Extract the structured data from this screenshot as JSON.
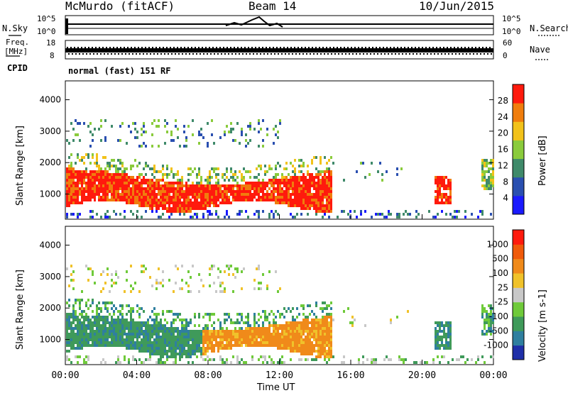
{
  "header": {
    "station": "McMurdo (fitACF)",
    "beam": "Beam 14",
    "date": "10/Jun/2015"
  },
  "top_panels": {
    "nsky_label": "N.Sky",
    "nsearch_label": "N.Search",
    "noise_ticks_left": [
      "10^5",
      "10^0"
    ],
    "noise_ticks_right": [
      "10^5",
      "10^0"
    ],
    "freq_label_1": "Freq.",
    "freq_label_2": "[MHz]",
    "freq_ticks": [
      "18",
      "8"
    ],
    "nave_label": "Nave",
    "nave_ticks": [
      "60",
      "0"
    ],
    "cpid_label": "CPID",
    "cpid_value": "normal (fast) 151 RF"
  },
  "chart_data": [
    {
      "type": "heatmap",
      "ylabel": "Slant Range [km]",
      "xlabel": "",
      "ylim": [
        200,
        4600
      ],
      "y_ticks": [
        "1000",
        "2000",
        "3000",
        "4000"
      ],
      "colorbar_label": "Power [dB]",
      "colorbar_ticks": [
        "28",
        "24",
        "20",
        "16",
        "12",
        "8",
        "4"
      ],
      "colors": [
        "#1a1aff",
        "#2a4fb0",
        "#3f8a6a",
        "#8acb3c",
        "#f2c21a",
        "#f07d0d",
        "#ff1a0d"
      ],
      "grid": false
    },
    {
      "type": "heatmap",
      "ylabel": "Slant Range [km]",
      "xlabel": "Time UT",
      "ylim": [
        200,
        4600
      ],
      "y_ticks": [
        "1000",
        "2000",
        "3000",
        "4000"
      ],
      "x_ticks": [
        "00:00",
        "04:00",
        "08:00",
        "12:00",
        "16:00",
        "20:00",
        "00:00"
      ],
      "colorbar_label": "Velocity [m s-1]",
      "colorbar_ticks": [
        "1000",
        "500",
        "100",
        "25",
        "-25",
        "-100",
        "-500",
        "-1000"
      ],
      "colors": [
        "#1f2fa8",
        "#2f7f9f",
        "#3f9a5a",
        "#6fca3a",
        "#c8c8c8",
        "#f0c22a",
        "#f08a1a",
        "#f05a0a",
        "#ff1a0d"
      ],
      "grid": false
    }
  ]
}
